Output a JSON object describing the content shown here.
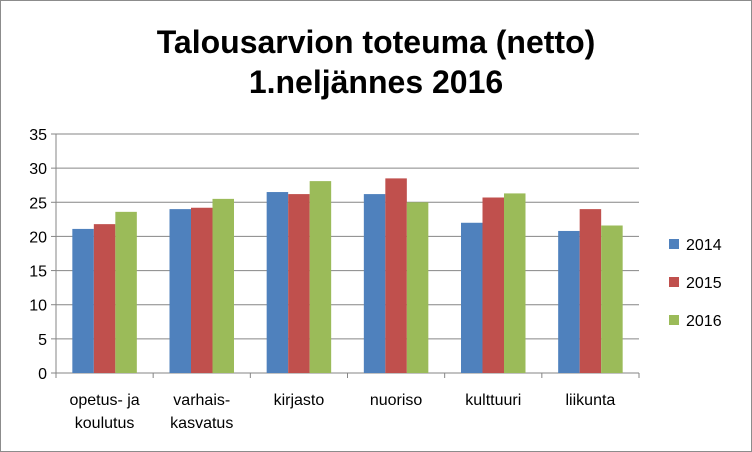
{
  "chart_data": {
    "type": "bar",
    "title": [
      "Talousarvion toteuma (netto)",
      "1.neljännes 2016"
    ],
    "categories": [
      [
        "opetus- ja",
        "koulutus"
      ],
      [
        "varhais-",
        "kasvatus"
      ],
      [
        "kirjasto"
      ],
      [
        "nuoriso"
      ],
      [
        "kulttuuri"
      ],
      [
        "liikunta"
      ]
    ],
    "series": [
      {
        "name": "2014",
        "color": "#4f81bd",
        "values": [
          21.1,
          24.0,
          26.5,
          26.2,
          22.0,
          20.8
        ]
      },
      {
        "name": "2015",
        "color": "#c0504d",
        "values": [
          21.8,
          24.2,
          26.2,
          28.5,
          25.7,
          24.0
        ]
      },
      {
        "name": "2016",
        "color": "#9bbb59",
        "values": [
          23.6,
          25.5,
          28.1,
          25.0,
          26.3,
          21.6
        ]
      }
    ],
    "yticks": [
      "0",
      "5",
      "10",
      "15",
      "20",
      "25",
      "30",
      "35"
    ],
    "ylim": [
      0,
      35
    ],
    "grid": true,
    "legend": "right"
  }
}
